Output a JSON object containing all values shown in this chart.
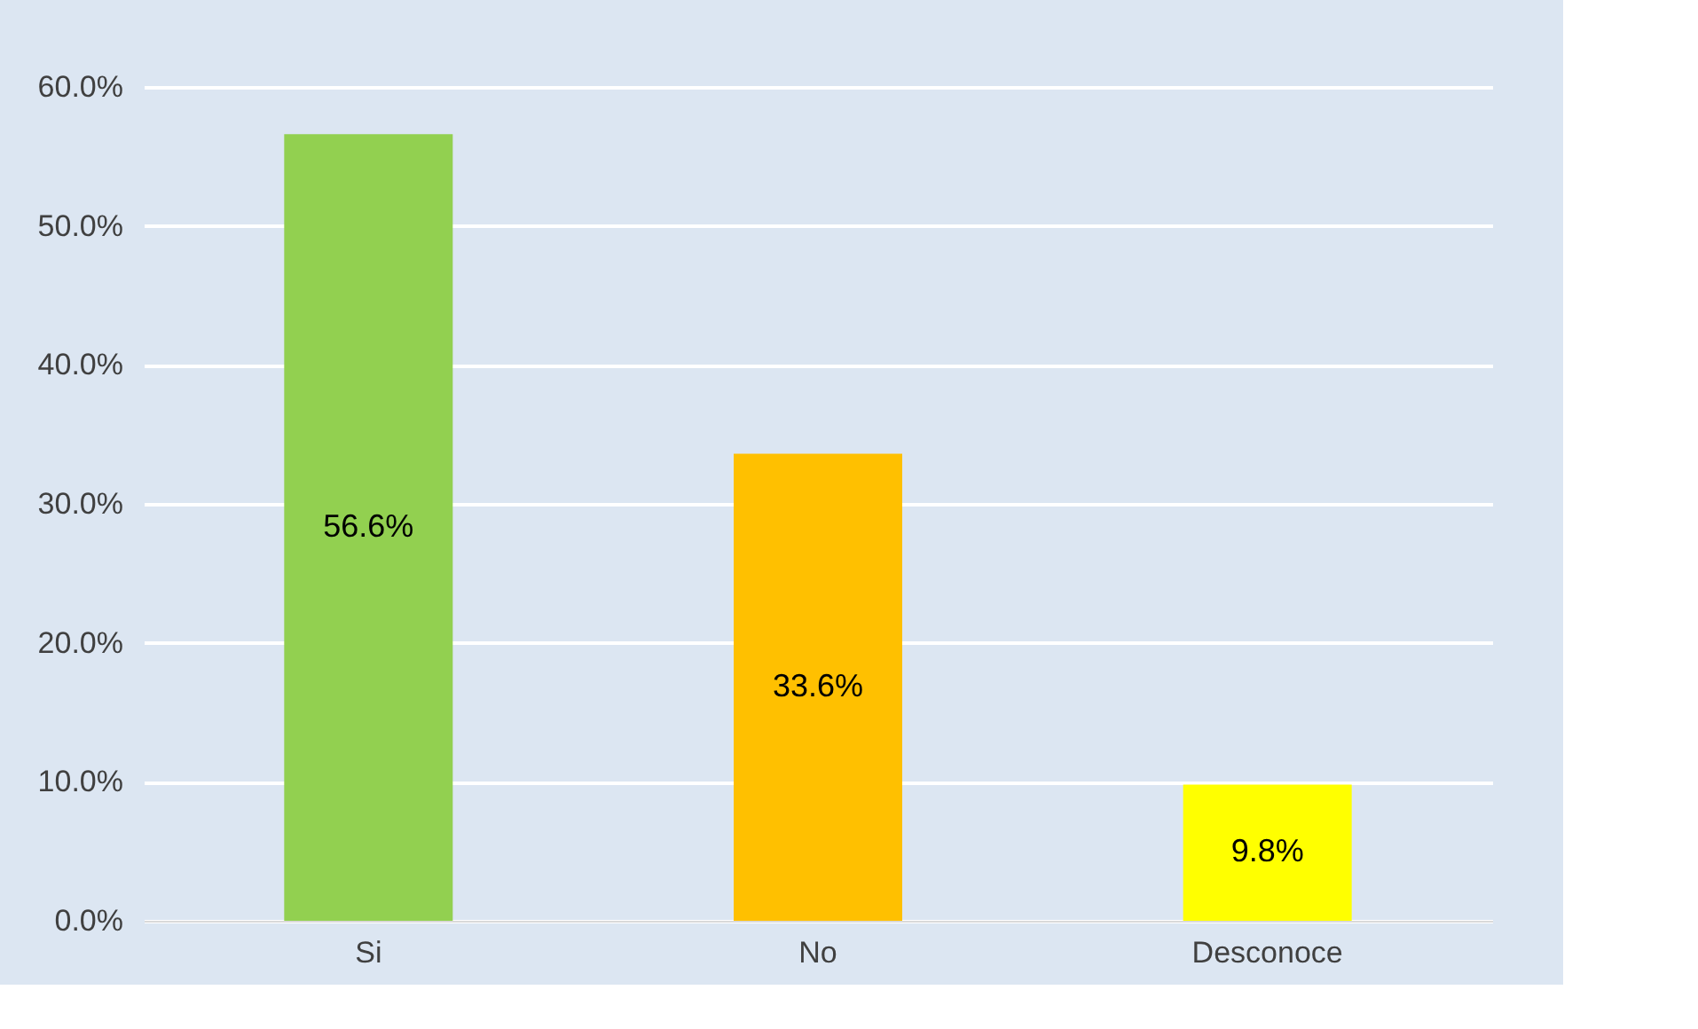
{
  "chart_data": {
    "type": "bar",
    "categories": [
      "Si",
      "No",
      "Desconoce"
    ],
    "values": [
      56.6,
      33.6,
      9.8
    ],
    "colors": [
      "#92d050",
      "#ffc000",
      "#ffff00"
    ],
    "value_labels": [
      "56.6%",
      "33.6%",
      "9.8%"
    ],
    "ylim": [
      0,
      60
    ],
    "yticks": [
      {
        "value": 0,
        "label": "0.0%"
      },
      {
        "value": 10,
        "label": "10.0%"
      },
      {
        "value": 20,
        "label": "20.0%"
      },
      {
        "value": 30,
        "label": "30.0%"
      },
      {
        "value": 40,
        "label": "40.0%"
      },
      {
        "value": 50,
        "label": "50.0%"
      },
      {
        "value": 60,
        "label": "60.0%"
      }
    ],
    "grid": "y",
    "legend": false
  }
}
